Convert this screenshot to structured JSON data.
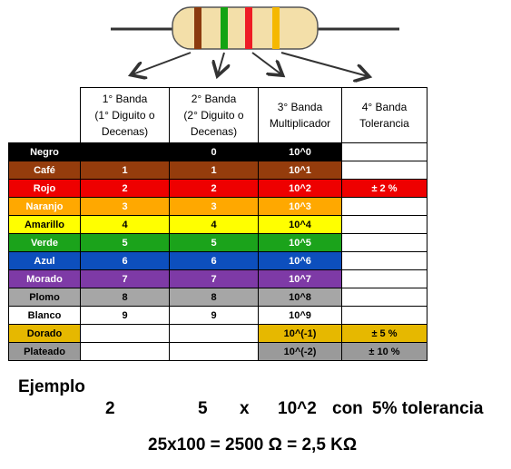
{
  "colors": {
    "resistor_body": "#f3dfa9",
    "band1": "#8b3a0e",
    "band2": "#13a313",
    "band3": "#ee1c24",
    "band4": "#f5b800",
    "wire": "#333333"
  },
  "headers": [
    {
      "l1": "1° Banda",
      "l2": "(1° Diguito o",
      "l3": "Decenas)"
    },
    {
      "l1": "2° Banda",
      "l2": "(2° Diguito o",
      "l3": "Decenas)"
    },
    {
      "l1": "3° Banda",
      "l2": "Multiplicador",
      "l3": ""
    },
    {
      "l1": "4° Banda",
      "l2": "Tolerancia",
      "l3": ""
    }
  ],
  "rows": [
    {
      "name": "Negro",
      "d1": "",
      "d2": "0",
      "mult": "10^0",
      "tol": "",
      "bg": "#000000",
      "fg": "#ffffff",
      "tolbg": "#ffffff",
      "tolfg": "#000000"
    },
    {
      "name": "Café",
      "d1": "1",
      "d2": "1",
      "mult": "10^1",
      "tol": "",
      "bg": "#953c0c",
      "fg": "#ffffff",
      "tolbg": "#ffffff",
      "tolfg": "#000000"
    },
    {
      "name": "Rojo",
      "d1": "2",
      "d2": "2",
      "mult": "10^2",
      "tol": "± 2 %",
      "bg": "#ee0000",
      "fg": "#ffffff",
      "tolbg": "#ee0000",
      "tolfg": "#ffffff"
    },
    {
      "name": "Naranjo",
      "d1": "3",
      "d2": "3",
      "mult": "10^3",
      "tol": "",
      "bg": "#ffa800",
      "fg": "#ffffff",
      "tolbg": "#ffffff",
      "tolfg": "#000000"
    },
    {
      "name": "Amarillo",
      "d1": "4",
      "d2": "4",
      "mult": "10^4",
      "tol": "",
      "bg": "#ffff00",
      "fg": "#000000",
      "tolbg": "#ffffff",
      "tolfg": "#000000"
    },
    {
      "name": "Verde",
      "d1": "5",
      "d2": "5",
      "mult": "10^5",
      "tol": "",
      "bg": "#1ba31b",
      "fg": "#ffffff",
      "tolbg": "#ffffff",
      "tolfg": "#000000"
    },
    {
      "name": "Azul",
      "d1": "6",
      "d2": "6",
      "mult": "10^6",
      "tol": "",
      "bg": "#0d4fbd",
      "fg": "#ffffff",
      "tolbg": "#ffffff",
      "tolfg": "#000000"
    },
    {
      "name": "Morado",
      "d1": "7",
      "d2": "7",
      "mult": "10^7",
      "tol": "",
      "bg": "#7e3aa6",
      "fg": "#ffffff",
      "tolbg": "#ffffff",
      "tolfg": "#000000"
    },
    {
      "name": "Plomo",
      "d1": "8",
      "d2": "8",
      "mult": "10^8",
      "tol": "",
      "bg": "#a6a6a6",
      "fg": "#000000",
      "tolbg": "#ffffff",
      "tolfg": "#000000"
    },
    {
      "name": "Blanco",
      "d1": "9",
      "d2": "9",
      "mult": "10^9",
      "tol": "",
      "bg": "#ffffff",
      "fg": "#000000",
      "tolbg": "#ffffff",
      "tolfg": "#000000"
    },
    {
      "name": "Dorado",
      "d1": "",
      "d2": "",
      "mult": "10^(-1)",
      "tol": "± 5 %",
      "bg": "#e6b800",
      "fg": "#000000",
      "tolbg": "#e6b800",
      "tolfg": "#000000",
      "special": "gold"
    },
    {
      "name": "Plateado",
      "d1": "",
      "d2": "",
      "mult": "10^(-2)",
      "tol": "± 10 %",
      "bg": "#9a9a9a",
      "fg": "#000000",
      "tolbg": "#9a9a9a",
      "tolfg": "#000000",
      "special": "silver"
    }
  ],
  "example": {
    "label": "Ejemplo",
    "digit1": "2",
    "digit2": "5",
    "times": "x",
    "multiplier": "10^2",
    "con": "con",
    "tolerance": "5% tolerancia",
    "formula": "25x100  =  2500 Ω = 2,5 KΩ"
  }
}
